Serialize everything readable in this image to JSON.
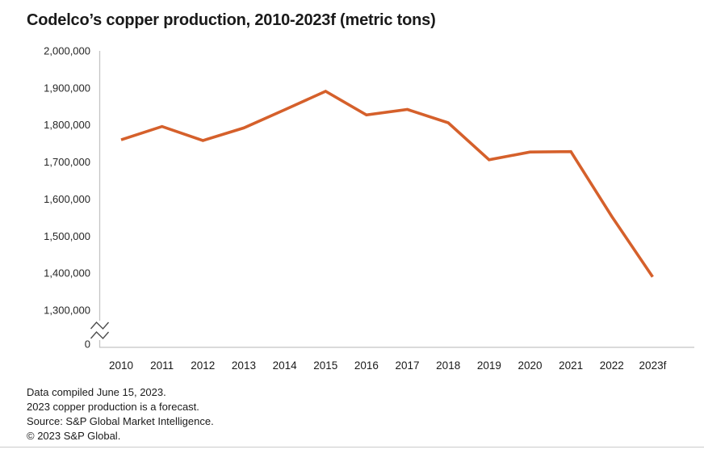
{
  "title": "Codelco’s copper production, 2010-2023f (metric tons)",
  "footer": {
    "lines": [
      "Data compiled June 15, 2023.",
      "2023 copper production is a forecast.",
      "Source: S&P Global Market Intelligence.",
      "© 2023 S&P Global."
    ]
  },
  "colors": {
    "line": "#d5602b",
    "axis": "#c4c4c4",
    "axis_break_mark": "#4d4d4d",
    "text": "#1a1a1a",
    "divider": "#cbcbcb"
  },
  "chart_data": {
    "type": "line",
    "title": "Codelco’s copper production, 2010-2023f (metric tons)",
    "xlabel": "",
    "ylabel": "",
    "categories": [
      "2010",
      "2011",
      "2012",
      "2013",
      "2014",
      "2015",
      "2016",
      "2017",
      "2018",
      "2019",
      "2020",
      "2021",
      "2022",
      "2023f"
    ],
    "series": [
      {
        "name": "Copper production (metric tons)",
        "color": "#d5602b",
        "values": [
          1760000,
          1796000,
          1758000,
          1792000,
          1841000,
          1891000,
          1827000,
          1842000,
          1806000,
          1706000,
          1727000,
          1728000,
          1553000,
          1390000
        ]
      }
    ],
    "y_axis": {
      "tick_values": [
        2000000,
        1900000,
        1800000,
        1700000,
        1600000,
        1500000,
        1400000,
        1300000
      ],
      "tick_labels": [
        "2,000,000",
        "1,900,000",
        "1,800,000",
        "1,700,000",
        "1,600,000",
        "1,500,000",
        "1,400,000",
        "1,300,000"
      ],
      "zero_label": "0",
      "axis_break": true
    },
    "ylim_display": [
      1300000,
      2000000
    ],
    "grid": false,
    "legend": "none"
  }
}
